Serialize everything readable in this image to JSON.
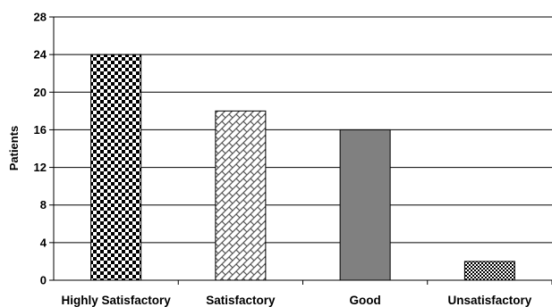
{
  "chart_data": {
    "type": "bar",
    "title": "",
    "xlabel": "",
    "ylabel": "Patients",
    "ylim": [
      0,
      28
    ],
    "yticks": [
      0,
      4,
      8,
      12,
      16,
      20,
      24,
      28
    ],
    "grid": true,
    "categories": [
      "Highly Satisfactory",
      "Satisfactory",
      "Good",
      "Unsatisfactory"
    ],
    "values": [
      24,
      18,
      16,
      2
    ],
    "fills": [
      "checker",
      "diagonal-weave",
      "solid-gray",
      "fine-checker"
    ],
    "colors": {
      "solid_gray": "#808080",
      "pattern_dark": "#000000",
      "pattern_light": "#ffffff",
      "grid": "#000000"
    }
  }
}
